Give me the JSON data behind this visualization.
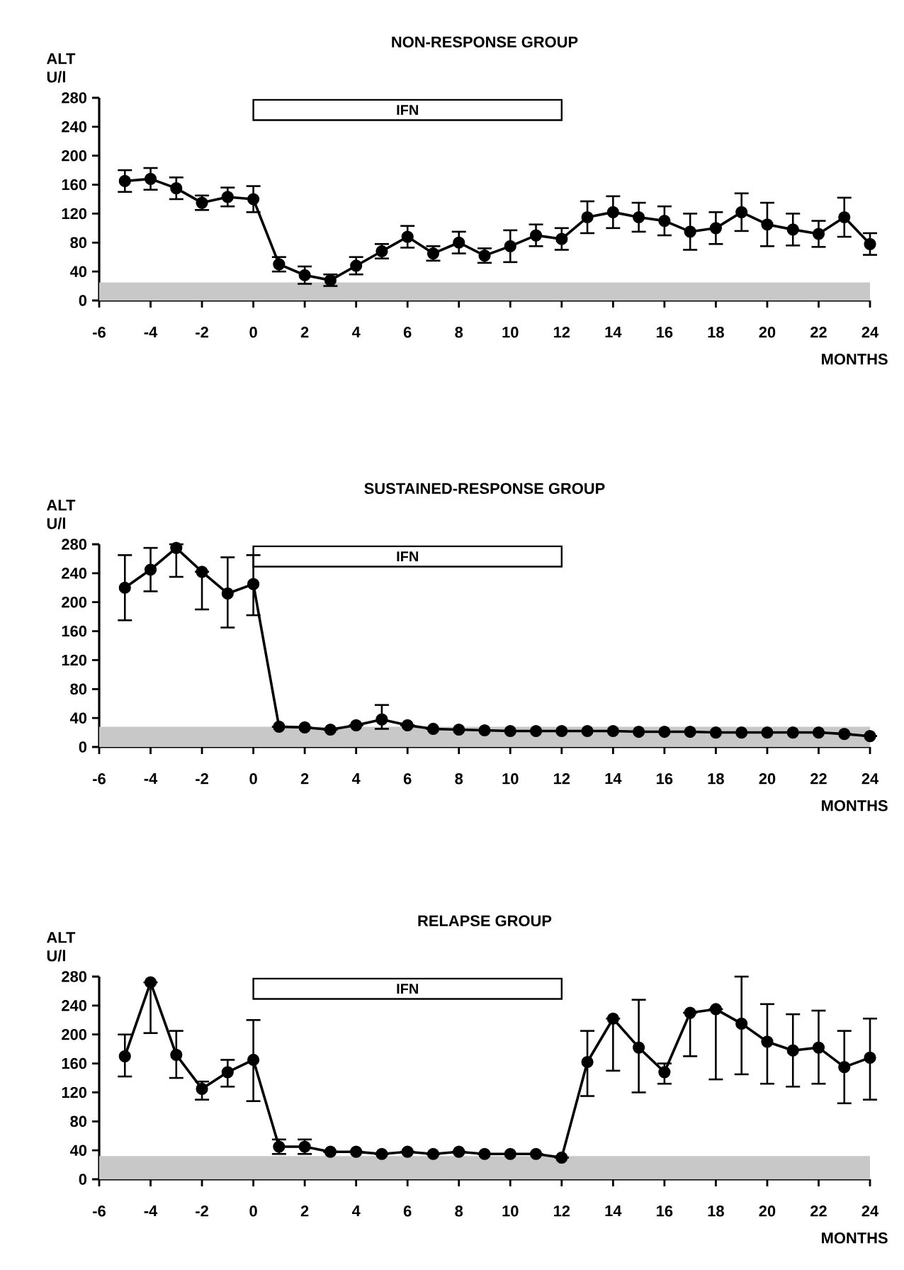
{
  "chart_data": [
    {
      "type": "line",
      "title": "NON-RESPONSE GROUP",
      "xlabel": "MONTHS",
      "ylabel": "ALT U/l",
      "color": "#000000",
      "marker": "circle",
      "line_style": "solid",
      "grid": false,
      "xlim": [
        -6,
        24
      ],
      "ylim": [
        0,
        280
      ],
      "xticks": [
        -6,
        -4,
        -2,
        0,
        2,
        4,
        6,
        8,
        10,
        12,
        14,
        16,
        18,
        20,
        22,
        24
      ],
      "yticks": [
        0,
        40,
        80,
        120,
        160,
        200,
        240,
        280
      ],
      "x": [
        -5,
        -4,
        -3,
        -2,
        -1,
        0,
        1,
        2,
        3,
        4,
        5,
        6,
        7,
        8,
        9,
        10,
        11,
        12,
        13,
        14,
        15,
        16,
        17,
        18,
        19,
        20,
        21,
        22,
        23,
        24
      ],
      "values": [
        165,
        168,
        155,
        135,
        143,
        140,
        50,
        35,
        28,
        48,
        68,
        88,
        65,
        80,
        62,
        75,
        90,
        85,
        115,
        122,
        115,
        110,
        95,
        100,
        122,
        105,
        98,
        92,
        115,
        78
      ],
      "errors": [
        15,
        15,
        15,
        10,
        13,
        18,
        10,
        12,
        8,
        12,
        10,
        15,
        10,
        15,
        10,
        22,
        15,
        15,
        22,
        22,
        20,
        20,
        25,
        22,
        26,
        30,
        22,
        18,
        27,
        15
      ],
      "bands": [
        {
          "axis": "y",
          "from": 0,
          "to": 25,
          "color": "#c8c8c8"
        },
        {
          "axis": "x",
          "from": 0,
          "to": 12,
          "label": "IFN",
          "color": "#ffffff"
        }
      ]
    },
    {
      "type": "line",
      "title": "SUSTAINED-RESPONSE GROUP",
      "xlabel": "MONTHS",
      "ylabel": "ALT U/l",
      "color": "#000000",
      "marker": "circle",
      "line_style": "solid",
      "grid": false,
      "xlim": [
        -6,
        24
      ],
      "ylim": [
        0,
        280
      ],
      "xticks": [
        -6,
        -4,
        -2,
        0,
        2,
        4,
        6,
        8,
        10,
        12,
        14,
        16,
        18,
        20,
        22,
        24
      ],
      "yticks": [
        0,
        40,
        80,
        120,
        160,
        200,
        240,
        280
      ],
      "x": [
        -5,
        -4,
        -3,
        -2,
        -1,
        0,
        1,
        2,
        3,
        4,
        5,
        6,
        7,
        8,
        9,
        10,
        11,
        12,
        13,
        14,
        15,
        16,
        17,
        18,
        19,
        20,
        21,
        22,
        23,
        24
      ],
      "values": [
        220,
        245,
        275,
        242,
        212,
        225,
        28,
        27,
        24,
        30,
        38,
        30,
        25,
        24,
        23,
        22,
        22,
        22,
        22,
        22,
        21,
        21,
        21,
        20,
        20,
        20,
        20,
        20,
        18,
        15
      ],
      "errors": [
        [
          175,
          265
        ],
        [
          215,
          275
        ],
        [
          235,
          280
        ],
        [
          190,
          242
        ],
        [
          165,
          262
        ],
        [
          182,
          265
        ],
        null,
        null,
        null,
        null,
        [
          25,
          58
        ],
        null,
        null,
        null,
        null,
        null,
        null,
        null,
        null,
        null,
        null,
        null,
        null,
        null,
        null,
        null,
        null,
        null,
        null,
        null
      ],
      "bands": [
        {
          "axis": "y",
          "from": 0,
          "to": 28,
          "color": "#c8c8c8"
        },
        {
          "axis": "x",
          "from": 0,
          "to": 12,
          "label": "IFN",
          "color": "#ffffff"
        }
      ]
    },
    {
      "type": "line",
      "title": "RELAPSE GROUP",
      "xlabel": "MONTHS",
      "ylabel": "ALT U/l",
      "color": "#000000",
      "marker": "circle",
      "line_style": "solid",
      "grid": false,
      "xlim": [
        -6,
        24
      ],
      "ylim": [
        0,
        280
      ],
      "xticks": [
        -6,
        -4,
        -2,
        0,
        2,
        4,
        6,
        8,
        10,
        12,
        14,
        16,
        18,
        20,
        22,
        24
      ],
      "yticks": [
        0,
        40,
        80,
        120,
        160,
        200,
        240,
        280
      ],
      "x": [
        -5,
        -4,
        -3,
        -2,
        -1,
        0,
        1,
        2,
        3,
        4,
        5,
        6,
        7,
        8,
        9,
        10,
        11,
        12,
        13,
        14,
        15,
        16,
        17,
        18,
        19,
        20,
        21,
        22,
        23,
        24
      ],
      "values": [
        170,
        272,
        172,
        125,
        148,
        165,
        45,
        45,
        38,
        38,
        35,
        38,
        35,
        38,
        35,
        35,
        35,
        30,
        162,
        222,
        182,
        148,
        230,
        235,
        215,
        190,
        178,
        182,
        155,
        168
      ],
      "errors": [
        [
          142,
          200
        ],
        [
          202,
          272
        ],
        [
          140,
          205
        ],
        [
          110,
          135
        ],
        [
          128,
          165
        ],
        [
          108,
          220
        ],
        [
          35,
          55
        ],
        [
          35,
          55
        ],
        null,
        null,
        null,
        null,
        null,
        null,
        null,
        null,
        null,
        null,
        [
          115,
          205
        ],
        [
          150,
          222
        ],
        [
          120,
          248
        ],
        [
          132,
          160
        ],
        [
          170,
          230
        ],
        [
          138,
          235
        ],
        [
          145,
          280
        ],
        [
          132,
          242
        ],
        [
          128,
          228
        ],
        [
          132,
          233
        ],
        [
          105,
          205
        ],
        [
          110,
          222
        ]
      ],
      "bands": [
        {
          "axis": "y",
          "from": 0,
          "to": 32,
          "color": "#c8c8c8"
        },
        {
          "axis": "x",
          "from": 0,
          "to": 12,
          "label": "IFN",
          "color": "#ffffff"
        }
      ]
    }
  ]
}
